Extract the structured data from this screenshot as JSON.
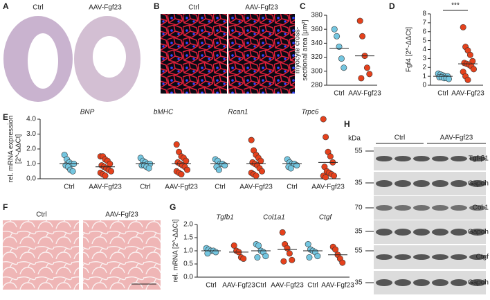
{
  "panel_letters": [
    "A",
    "B",
    "C",
    "D",
    "E",
    "F",
    "G",
    "H"
  ],
  "images": {
    "a": [
      "Ctrl",
      "AAV-Fgf23"
    ],
    "b": [
      "Ctrl",
      "AAV-Fgf23"
    ],
    "f": [
      "Ctrl",
      "AAV-Fgf23"
    ]
  },
  "blots": {
    "unit": "kDa",
    "groups": [
      "Ctrl",
      "AAV-Fgf23"
    ],
    "rows": [
      {
        "marker": 55,
        "name": "Tgf-β1"
      },
      {
        "marker": 35,
        "name": "Gapdh"
      },
      {
        "marker": 70,
        "name": "Col 1"
      },
      {
        "marker": 35,
        "name": "Gapdh"
      },
      {
        "marker": 55,
        "name": "Ctgf"
      },
      {
        "marker": 35,
        "name": "Gapdh"
      }
    ]
  },
  "chart_data": [
    {
      "type": "dotplot",
      "ylabel": [
        "myocyte cross-",
        "sectional area [µm²]"
      ],
      "ylim": [
        280,
        380
      ],
      "yticks": [
        280,
        300,
        320,
        340,
        360,
        380
      ],
      "colors": [
        "#74c6e0",
        "#e5411c"
      ],
      "groups": [
        {
          "categories": [
            "Ctrl",
            "AAV-Fgf23"
          ],
          "values": [
            [
              360,
              350,
              335,
              318,
              305
            ],
            [
              372,
              350,
              322,
              305,
              296,
              290
            ]
          ],
          "means": [
            333,
            322
          ]
        }
      ]
    },
    {
      "type": "dotplot",
      "ylabel": "Fgf4 [2^-ΔΔCt]",
      "ylim": [
        0,
        8
      ],
      "yticks": [
        0,
        1,
        2,
        3,
        4,
        5,
        6,
        7,
        8
      ],
      "annotation": "***",
      "colors": [
        "#74c6e0",
        "#e5411c"
      ],
      "groups": [
        {
          "categories": [
            "Ctrl",
            "AAV-Fgf23"
          ],
          "values": [
            [
              1.3,
              1.2,
              1.1,
              1.0,
              1.0,
              0.9,
              0.9,
              0.8,
              0.8,
              0.7
            ],
            [
              6.5,
              4.3,
              3.9,
              3.4,
              2.7,
              2.5,
              2.4,
              2.3,
              2.1,
              1.8,
              1.5,
              1.0,
              0.6
            ]
          ],
          "means": [
            1.0,
            2.4
          ]
        }
      ]
    },
    {
      "type": "dotplot",
      "ylabel": [
        "rel. mRNA expression",
        "[2^-ΔΔCt]"
      ],
      "ylim": [
        0,
        4
      ],
      "yticks": [
        {
          "value": 0,
          "label": "0.0"
        },
        {
          "value": 1,
          "label": "1.0"
        },
        {
          "value": 2,
          "label": "2.0"
        },
        {
          "value": 3,
          "label": "3.0"
        },
        {
          "value": 4,
          "label": "4.0"
        }
      ],
      "colors": [
        "#74c6e0",
        "#e5411c"
      ],
      "groups": [
        {
          "title": "BNP",
          "categories": [
            "Ctrl",
            "AAV-Fgf23"
          ],
          "values": [
            [
              1.6,
              1.3,
              1.1,
              1.0,
              1.0,
              0.9,
              0.8,
              0.6,
              0.5
            ],
            [
              1.5,
              1.5,
              1.3,
              1.2,
              1.0,
              0.9,
              0.8,
              0.7,
              0.6,
              0.5,
              0.4,
              0.3,
              0.2
            ]
          ],
          "means": [
            1.0,
            0.8
          ]
        },
        {
          "title": "bMHC",
          "categories": [
            "Ctrl",
            "AAV-Fgf23"
          ],
          "values": [
            [
              1.4,
              1.2,
              1.1,
              1.0,
              1.0,
              0.9,
              0.9,
              0.8,
              0.7
            ],
            [
              2.3,
              1.8,
              1.5,
              1.4,
              1.2,
              1.1,
              1.0,
              0.9,
              0.8,
              0.6,
              0.5,
              0.4,
              0.3
            ]
          ],
          "means": [
            1.0,
            1.0
          ]
        },
        {
          "title": "Rcan1",
          "categories": [
            "Ctrl",
            "AAV-Fgf23"
          ],
          "values": [
            [
              1.3,
              1.2,
              1.0,
              1.0,
              0.9,
              0.8,
              0.6
            ],
            [
              2.6,
              1.9,
              1.6,
              1.4,
              1.2,
              1.1,
              1.0,
              0.9,
              0.7,
              0.5,
              0.4,
              0.3,
              0.2
            ]
          ],
          "means": [
            1.0,
            1.0
          ]
        },
        {
          "title": "Trpc6",
          "categories": [
            "Ctrl",
            "AAV-Fgf23"
          ],
          "values": [
            [
              1.3,
              1.1,
              1.0,
              1.0,
              0.9,
              0.8,
              0.7
            ],
            [
              4.0,
              2.8,
              1.8,
              1.5,
              1.1,
              0.8,
              0.5,
              0.4,
              0.3,
              0.2,
              0.2,
              0.1
            ]
          ],
          "means": [
            1.0,
            1.1
          ]
        }
      ]
    },
    {
      "type": "dotplot",
      "ylabel": "rel. mRNA [2^-ΔΔCt]",
      "ylim": [
        0,
        2
      ],
      "yticks": [
        {
          "value": 0,
          "label": "0.0"
        },
        {
          "value": 0.5,
          "label": "0.5"
        },
        {
          "value": 1,
          "label": "1.0"
        },
        {
          "value": 1.5,
          "label": "1.5"
        },
        {
          "value": 2,
          "label": "2.0"
        }
      ],
      "colors": [
        "#74c6e0",
        "#e5411c"
      ],
      "groups": [
        {
          "title": "Tgfb1",
          "categories": [
            "Ctrl",
            "AAV-Fgf23"
          ],
          "values": [
            [
              1.1,
              1.05,
              1.0,
              1.0,
              0.95,
              0.9
            ],
            [
              1.2,
              1.0,
              0.95,
              0.75,
              0.7
            ]
          ],
          "means": [
            1.0,
            0.95
          ]
        },
        {
          "title": "Col1a1",
          "categories": [
            "Ctrl",
            "AAV-Fgf23"
          ],
          "values": [
            [
              1.25,
              1.2,
              1.0,
              0.95,
              0.8,
              0.75
            ],
            [
              1.7,
              1.25,
              1.1,
              0.9,
              0.65,
              0.6
            ]
          ],
          "means": [
            1.0,
            1.05
          ]
        },
        {
          "title": "Ctgf",
          "categories": [
            "Ctrl",
            "AAV-Fgf23"
          ],
          "values": [
            [
              1.25,
              1.05,
              1.0,
              0.95,
              0.8,
              0.75
            ],
            [
              1.15,
              1.05,
              0.85,
              0.7,
              0.55
            ]
          ],
          "means": [
            1.0,
            0.85
          ]
        }
      ]
    }
  ]
}
